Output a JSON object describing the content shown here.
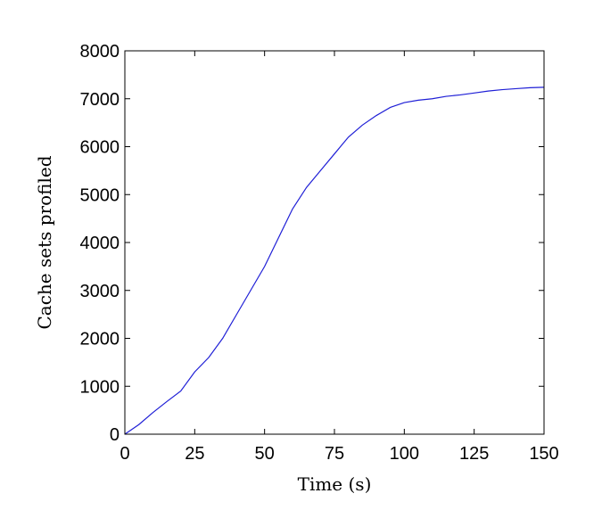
{
  "chart_data": {
    "type": "line",
    "xlabel": "Time (s)",
    "ylabel": "Cache sets profiled",
    "xlim": [
      0,
      150
    ],
    "ylim": [
      0,
      8000
    ],
    "xticks": [
      0,
      25,
      50,
      75,
      100,
      125,
      150
    ],
    "yticks": [
      0,
      1000,
      2000,
      3000,
      4000,
      5000,
      6000,
      7000,
      8000
    ],
    "grid": false,
    "series": [
      {
        "color": "#1f1fd6",
        "x": [
          0,
          5,
          10,
          15,
          20,
          25,
          30,
          35,
          40,
          45,
          50,
          55,
          60,
          65,
          70,
          75,
          80,
          85,
          90,
          95,
          100,
          105,
          110,
          115,
          120,
          125,
          130,
          135,
          140,
          145,
          150
        ],
        "y": [
          0,
          200,
          450,
          680,
          900,
          1300,
          1600,
          2000,
          2500,
          3000,
          3500,
          4100,
          4700,
          5150,
          5500,
          5850,
          6200,
          6450,
          6650,
          6820,
          6920,
          6970,
          7000,
          7050,
          7080,
          7120,
          7160,
          7190,
          7210,
          7230,
          7240
        ]
      }
    ]
  }
}
